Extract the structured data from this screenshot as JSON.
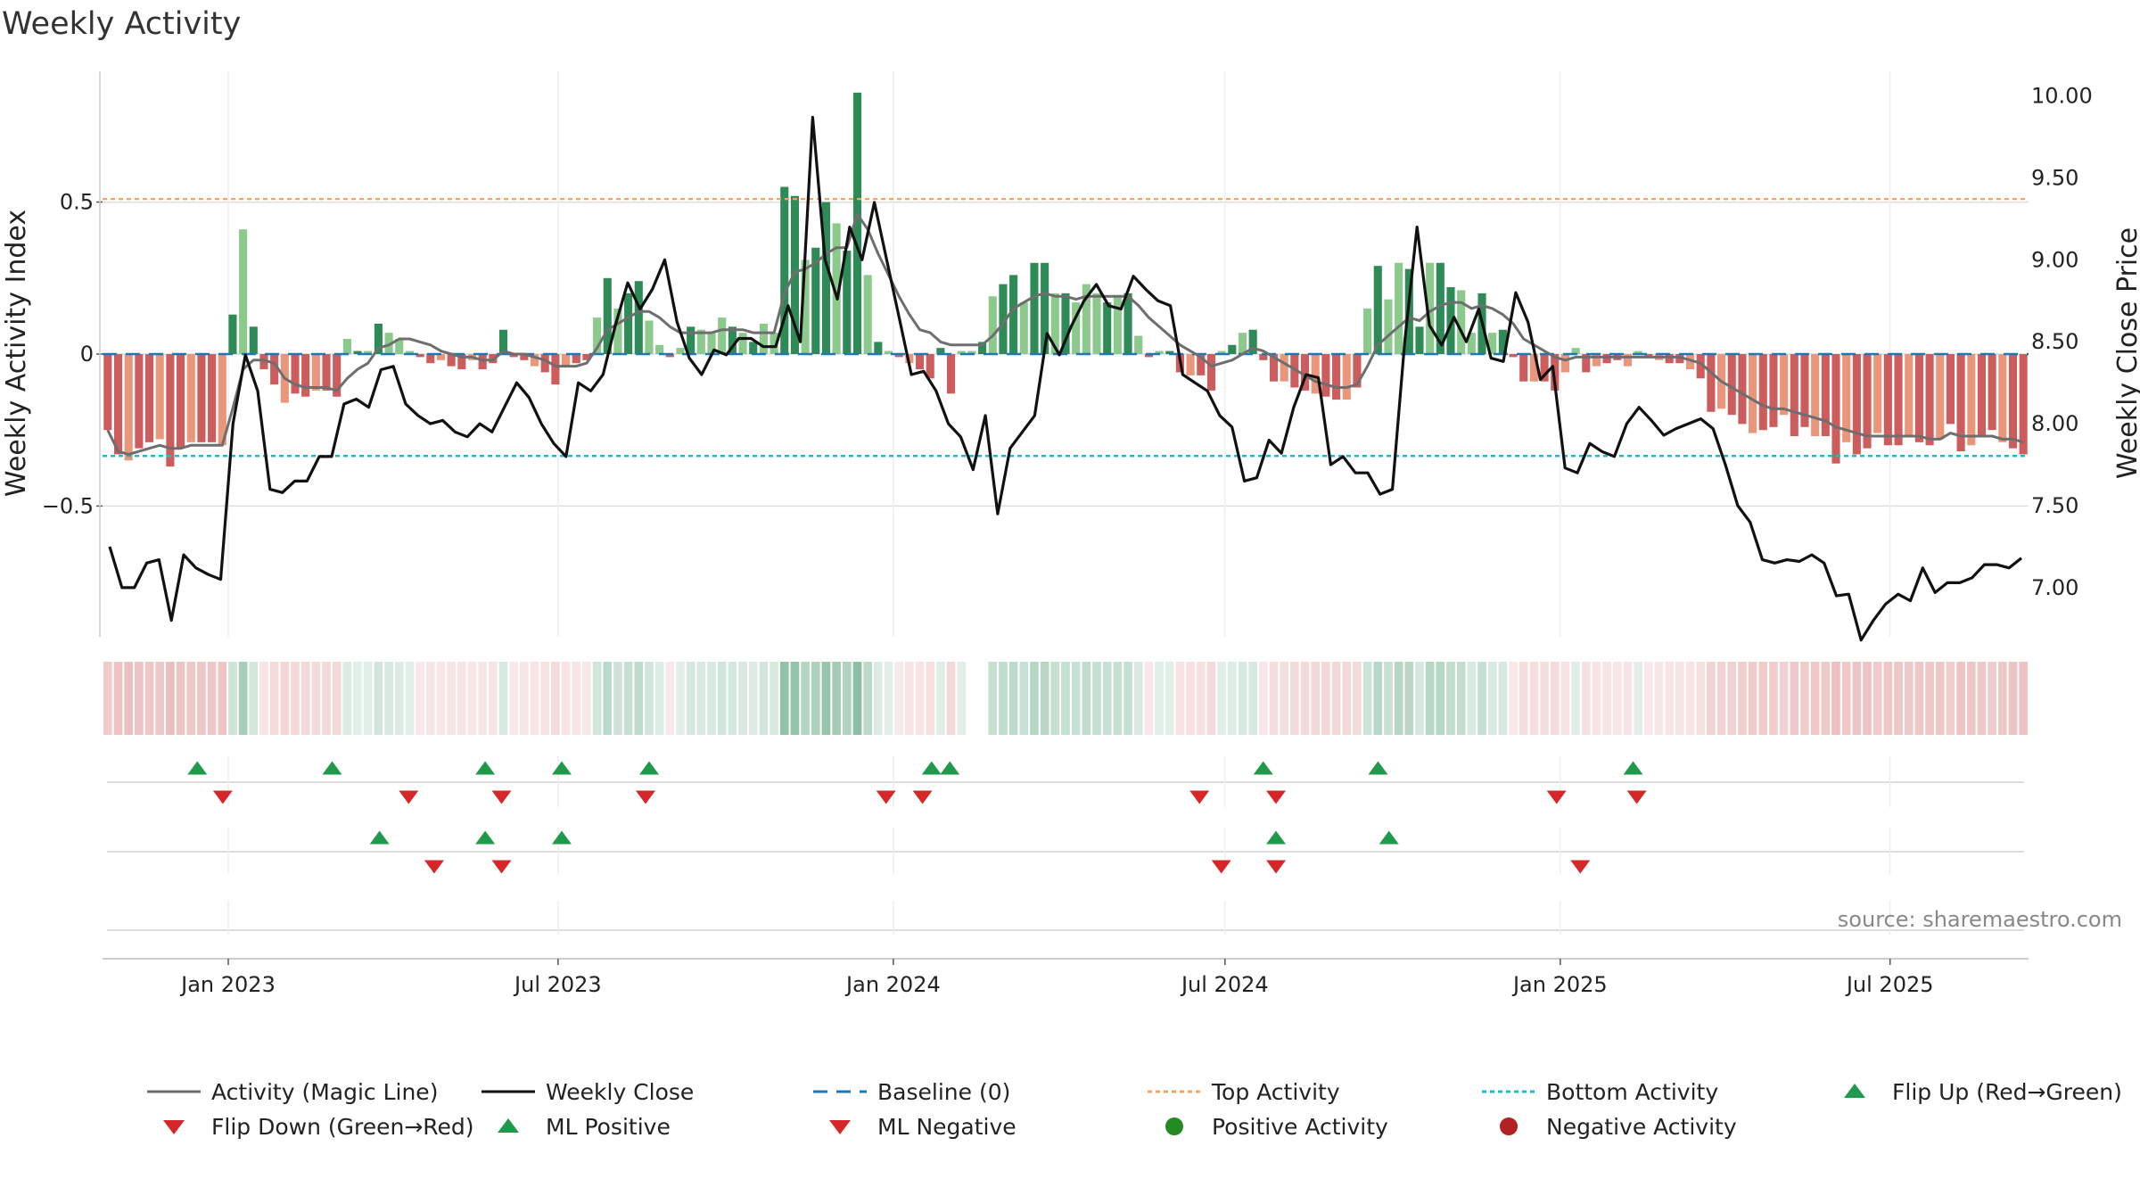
{
  "chart_data": {
    "type": "bar+line",
    "title": "Weekly Activity",
    "ylabel_left": "Weekly Activity Index",
    "ylabel_right": "Weekly Close Price",
    "source": "source: sharemaestro.com",
    "x_range": [
      "2022-10-24",
      "2025-09-15"
    ],
    "ylim_left": [
      -0.93,
      0.93
    ],
    "ylim_right": [
      6.7,
      10.15
    ],
    "left_ticks": [
      {
        "value": 0.5,
        "label": "0.5"
      },
      {
        "value": 0,
        "label": "0"
      },
      {
        "value": -0.5,
        "label": "−0.5"
      }
    ],
    "right_ticks": [
      {
        "value": 10.0,
        "label": "10.00"
      },
      {
        "value": 9.5,
        "label": "9.50"
      },
      {
        "value": 9.0,
        "label": "9.00"
      },
      {
        "value": 8.5,
        "label": "8.50"
      },
      {
        "value": 8.0,
        "label": "8.00"
      },
      {
        "value": 7.5,
        "label": "7.50"
      },
      {
        "value": 7.0,
        "label": "7.00"
      }
    ],
    "x_ticks": [
      {
        "date": "2023-01-01",
        "label": "Jan 2023"
      },
      {
        "date": "2023-07-01",
        "label": "Jul 2023"
      },
      {
        "date": "2024-01-01",
        "label": "Jan 2024"
      },
      {
        "date": "2024-07-01",
        "label": "Jul 2024"
      },
      {
        "date": "2025-01-01",
        "label": "Jan 2025"
      },
      {
        "date": "2025-07-01",
        "label": "Jul 2025"
      }
    ],
    "top_activity": 0.51,
    "bottom_activity": -0.335,
    "baseline": 0,
    "colors": {
      "pos_strong": "#2e8b57",
      "pos_light": "#8cc98c",
      "neg_strong": "#cd5c5c",
      "neg_light": "#e9967a",
      "magic_line": "#6e6e6e",
      "close_line": "#111111",
      "baseline": "#1f77b4",
      "top": "#f4a460",
      "bottom": "#17becf",
      "flip_up": "#1e9a4a",
      "flip_down": "#d62728",
      "grid": "#dddddd"
    },
    "activity": [
      -0.25,
      -0.33,
      -0.35,
      -0.31,
      -0.29,
      -0.28,
      -0.37,
      -0.31,
      -0.29,
      -0.29,
      -0.29,
      -0.3,
      0.13,
      0.41,
      0.09,
      -0.05,
      -0.1,
      -0.16,
      -0.13,
      -0.14,
      -0.12,
      -0.12,
      -0.14,
      0.05,
      0.01,
      0.01,
      0.1,
      0.07,
      0.05,
      0.01,
      -0.01,
      -0.03,
      -0.02,
      -0.04,
      -0.05,
      -0.02,
      -0.05,
      -0.03,
      0.08,
      -0.01,
      -0.02,
      -0.04,
      -0.06,
      -0.1,
      -0.04,
      -0.03,
      -0.02,
      0.12,
      0.25,
      0.15,
      0.2,
      0.24,
      0.11,
      0.03,
      -0.01,
      0.02,
      0.09,
      0.08,
      0.07,
      0.12,
      0.09,
      0.07,
      0.04,
      0.1,
      0.07,
      0.55,
      0.52,
      0.31,
      0.35,
      0.5,
      0.43,
      0.34,
      0.86,
      0.26,
      0.04,
      0.01,
      -0.01,
      -0.03,
      -0.05,
      -0.08,
      0.02,
      -0.13,
      0.01,
      0.01,
      0.04,
      0.19,
      0.23,
      0.26,
      0.17,
      0.3,
      0.3,
      0.2,
      0.2,
      0.17,
      0.23,
      0.2,
      0.17,
      0.19,
      0.2,
      0.06,
      -0.01,
      0.01,
      0.01,
      -0.06,
      -0.07,
      -0.07,
      -0.12,
      0.01,
      0.03,
      0.07,
      0.08,
      -0.02,
      -0.09,
      -0.09,
      -0.11,
      -0.12,
      -0.13,
      -0.14,
      -0.15,
      -0.15,
      -0.11,
      0.15,
      0.29,
      0.18,
      0.3,
      0.28,
      0.09,
      0.3,
      0.3,
      0.22,
      0.21,
      0.07,
      0.2,
      0.07,
      0.08,
      -0.01,
      -0.09,
      -0.09,
      -0.09,
      -0.12,
      -0.06,
      0.02,
      -0.06,
      -0.04,
      -0.03,
      -0.02,
      -0.04,
      0.01,
      -0.01,
      -0.02,
      -0.03,
      -0.03,
      -0.05,
      -0.08,
      -0.19,
      -0.18,
      -0.2,
      -0.23,
      -0.26,
      -0.25,
      -0.24,
      -0.2,
      -0.27,
      -0.24,
      -0.27,
      -0.27,
      -0.36,
      -0.29,
      -0.33,
      -0.31,
      -0.26,
      -0.3,
      -0.3,
      -0.27,
      -0.29,
      -0.3,
      -0.28,
      -0.23,
      -0.32,
      -0.3,
      -0.27,
      -0.25,
      -0.29,
      -0.31,
      -0.33
    ],
    "magic_line": [
      -0.25,
      -0.32,
      -0.33,
      -0.32,
      -0.31,
      -0.3,
      -0.31,
      -0.31,
      -0.3,
      -0.3,
      -0.3,
      -0.3,
      -0.18,
      -0.05,
      -0.02,
      -0.02,
      -0.03,
      -0.08,
      -0.1,
      -0.11,
      -0.11,
      -0.11,
      -0.12,
      -0.08,
      -0.05,
      -0.03,
      0.02,
      0.03,
      0.05,
      0.05,
      0.04,
      0.03,
      0.01,
      0.0,
      -0.01,
      -0.01,
      -0.02,
      -0.02,
      0.01,
      0.0,
      0.0,
      -0.01,
      -0.02,
      -0.04,
      -0.04,
      -0.04,
      -0.03,
      0.02,
      0.08,
      0.1,
      0.12,
      0.14,
      0.14,
      0.12,
      0.09,
      0.07,
      0.07,
      0.07,
      0.07,
      0.08,
      0.08,
      0.08,
      0.07,
      0.07,
      0.07,
      0.2,
      0.27,
      0.28,
      0.3,
      0.33,
      0.35,
      0.35,
      0.46,
      0.41,
      0.33,
      0.26,
      0.19,
      0.13,
      0.08,
      0.07,
      0.04,
      0.03,
      0.03,
      0.03,
      0.03,
      0.06,
      0.1,
      0.15,
      0.17,
      0.19,
      0.2,
      0.19,
      0.19,
      0.18,
      0.19,
      0.19,
      0.19,
      0.19,
      0.19,
      0.16,
      0.12,
      0.09,
      0.06,
      0.03,
      0.01,
      -0.01,
      -0.04,
      -0.03,
      -0.02,
      0.0,
      0.02,
      0.01,
      -0.01,
      -0.03,
      -0.05,
      -0.07,
      -0.09,
      -0.1,
      -0.11,
      -0.11,
      -0.1,
      -0.04,
      0.03,
      0.06,
      0.09,
      0.12,
      0.11,
      0.14,
      0.16,
      0.17,
      0.17,
      0.15,
      0.16,
      0.15,
      0.13,
      0.1,
      0.05,
      0.03,
      0.01,
      -0.01,
      -0.02,
      -0.01,
      -0.01,
      -0.01,
      -0.01,
      -0.01,
      -0.01,
      -0.01,
      -0.01,
      -0.01,
      -0.01,
      -0.01,
      -0.02,
      -0.03,
      -0.06,
      -0.09,
      -0.11,
      -0.13,
      -0.15,
      -0.17,
      -0.18,
      -0.18,
      -0.19,
      -0.2,
      -0.21,
      -0.22,
      -0.24,
      -0.25,
      -0.26,
      -0.27,
      -0.27,
      -0.27,
      -0.27,
      -0.27,
      -0.27,
      -0.28,
      -0.28,
      -0.26,
      -0.27,
      -0.27,
      -0.27,
      -0.27,
      -0.28,
      -0.28,
      -0.29
    ],
    "weekly_close": [
      7.25,
      7.0,
      7.0,
      7.15,
      7.17,
      6.8,
      7.2,
      7.12,
      7.08,
      7.05,
      8.0,
      8.42,
      8.2,
      7.6,
      7.58,
      7.65,
      7.65,
      7.8,
      7.8,
      8.12,
      8.15,
      8.1,
      8.33,
      8.35,
      8.12,
      8.05,
      8.0,
      8.02,
      7.95,
      7.92,
      8.0,
      7.95,
      8.1,
      8.25,
      8.16,
      8.0,
      7.88,
      7.8,
      8.25,
      8.2,
      8.3,
      8.6,
      8.86,
      8.7,
      8.82,
      9.0,
      8.62,
      8.4,
      8.3,
      8.45,
      8.42,
      8.52,
      8.52,
      8.47,
      8.47,
      8.72,
      8.5,
      9.87,
      9.0,
      8.76,
      9.2,
      9.0,
      9.35,
      9.0,
      8.65,
      8.3,
      8.32,
      8.2,
      8.0,
      7.92,
      7.72,
      8.05,
      7.45,
      7.85,
      7.95,
      8.05,
      8.55,
      8.42,
      8.6,
      8.75,
      8.85,
      8.72,
      8.7,
      8.9,
      8.82,
      8.75,
      8.72,
      8.3,
      8.25,
      8.2,
      8.05,
      7.98,
      7.65,
      7.67,
      7.9,
      7.82,
      8.1,
      8.3,
      8.28,
      7.75,
      7.8,
      7.7,
      7.7,
      7.57,
      7.6,
      8.5,
      9.2,
      8.6,
      8.48,
      8.65,
      8.5,
      8.7,
      8.4,
      8.38,
      8.8,
      8.62,
      8.27,
      8.35,
      7.73,
      7.7,
      7.88,
      7.83,
      7.8,
      8.0,
      8.1,
      8.02,
      7.93,
      7.97,
      8.0,
      8.03,
      7.97,
      7.75,
      7.5,
      7.4,
      7.17,
      7.15,
      7.17,
      7.16,
      7.2,
      7.15,
      6.95,
      6.96,
      6.68,
      6.8,
      6.9,
      6.96,
      6.92,
      7.12,
      6.97,
      7.03,
      7.03,
      7.06,
      7.14,
      7.14,
      7.12,
      7.18
    ],
    "flip_up_row1": [
      "2022-12-15",
      "2023-02-27",
      "2023-05-22",
      "2023-07-03",
      "2023-08-20",
      "2024-01-22",
      "2024-02-01",
      "2024-07-22",
      "2024-09-23",
      "2025-02-10"
    ],
    "flip_down_row1": [
      "2022-12-29",
      "2023-04-10",
      "2023-05-31",
      "2023-08-18",
      "2023-12-28",
      "2024-01-17",
      "2024-06-17",
      "2024-07-29",
      "2024-12-30",
      "2025-02-12"
    ],
    "flip_up_row2": [
      "2023-03-25",
      "2023-05-22",
      "2023-07-03",
      "2024-07-29",
      "2024-09-29"
    ],
    "flip_down_row2": [
      "2023-04-24",
      "2023-05-31",
      "2024-06-29",
      "2024-07-29",
      "2025-01-12"
    ],
    "strip_gap": [
      "2024-02-08",
      "2024-02-22"
    ]
  },
  "legend": [
    {
      "label": "Activity (Magic Line)",
      "symbol": "line",
      "color": "#6e6e6e",
      "dash": ""
    },
    {
      "label": "Weekly Close",
      "symbol": "line",
      "color": "#111111",
      "dash": ""
    },
    {
      "label": "Baseline (0)",
      "symbol": "line",
      "color": "#1f77b4",
      "dash": "16,10"
    },
    {
      "label": "Top Activity",
      "symbol": "line",
      "color": "#f4a460",
      "dash": "5,4"
    },
    {
      "label": "Bottom Activity",
      "symbol": "line",
      "color": "#17becf",
      "dash": "5,4"
    },
    {
      "label": "Flip Up (Red→Green)",
      "symbol": "tri-up",
      "color": "#1e9a4a"
    },
    {
      "label": "Flip Down (Green→Red)",
      "symbol": "tri-down",
      "color": "#d62728"
    },
    {
      "label": "ML Positive",
      "symbol": "tri-up",
      "color": "#1e9a4a"
    },
    {
      "label": "ML Negative",
      "symbol": "tri-down",
      "color": "#d62728"
    },
    {
      "label": "Positive Activity",
      "symbol": "dot",
      "color": "#228b22"
    },
    {
      "label": "Negative Activity",
      "symbol": "dot",
      "color": "#b22222"
    }
  ]
}
